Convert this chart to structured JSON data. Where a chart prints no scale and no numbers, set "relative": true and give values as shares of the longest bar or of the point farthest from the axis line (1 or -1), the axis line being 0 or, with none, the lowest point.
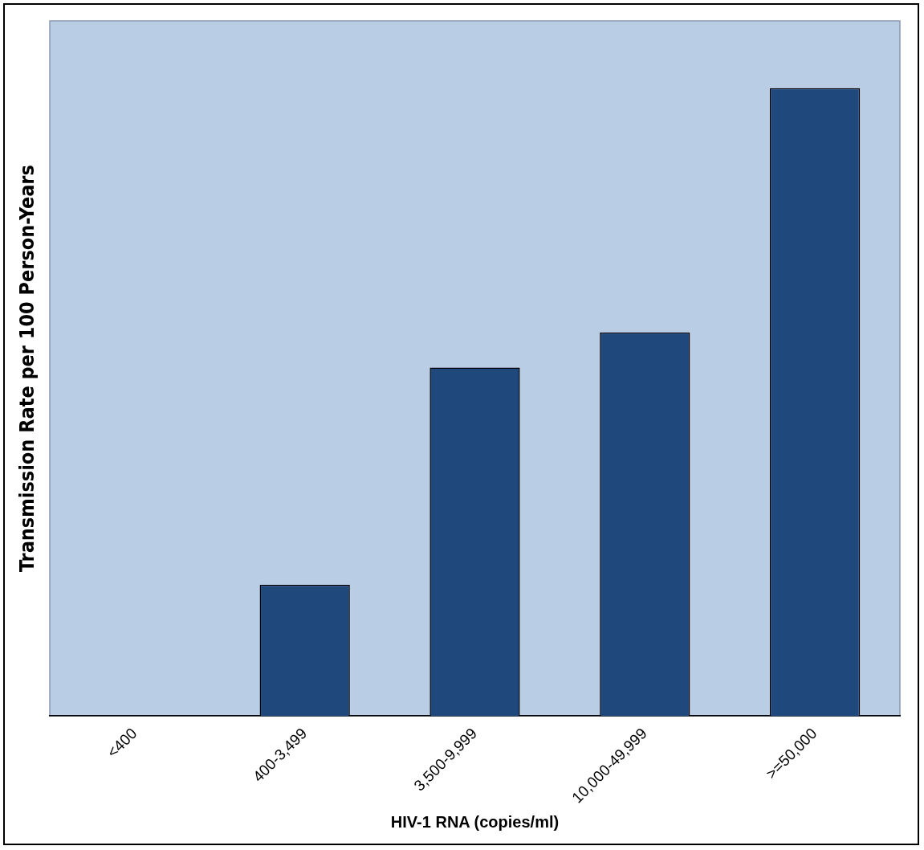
{
  "chart_data": {
    "type": "bar",
    "xlabel": "HIV-1 RNA (copies/ml)",
    "ylabel": "Transmission Rate per 100 Person-Years",
    "categories": [
      "<400",
      "400-3,499",
      "3,500-9,999",
      "10,000-49,999",
      ">=50,000"
    ],
    "values": [
      0,
      0.209,
      0.555,
      0.611,
      1
    ],
    "color": "#1f497d",
    "relative": true,
    "grid": false,
    "legend": false
  }
}
